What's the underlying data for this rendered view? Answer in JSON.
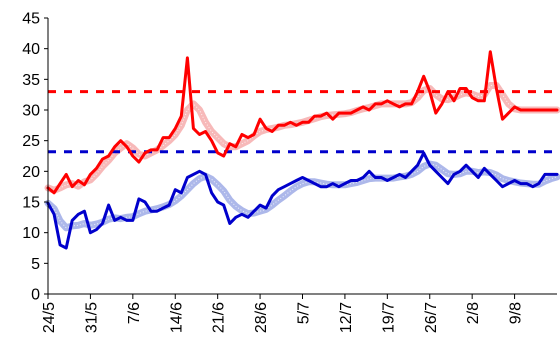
{
  "chart_data": {
    "type": "line",
    "title": "",
    "xlabel": "",
    "ylabel": "",
    "ylim": [
      0,
      45
    ],
    "y_ticks": [
      0,
      5,
      10,
      15,
      20,
      25,
      30,
      35,
      40,
      45
    ],
    "x_range_days": [
      "24/5",
      "16/8"
    ],
    "x_ticks": [
      "24/5",
      "31/5",
      "7/6",
      "14/6",
      "21/6",
      "28/6",
      "5/7",
      "12/7",
      "19/7",
      "26/7",
      "2/8",
      "9/8"
    ],
    "grid": false,
    "legend": "none",
    "reference_lines": [
      {
        "value": 33,
        "color": "#ff0000",
        "style": "dashed"
      },
      {
        "value": 23.2,
        "color": "#0000cc",
        "style": "dashed"
      }
    ],
    "series": [
      {
        "color": "#ff0000",
        "style": "solid",
        "dates": [
          "24/5",
          "25/5",
          "26/5",
          "27/5",
          "28/5",
          "29/5",
          "30/5",
          "31/5",
          "1/6",
          "2/6",
          "3/6",
          "4/6",
          "5/6",
          "6/6",
          "7/6",
          "8/6",
          "9/6",
          "10/6",
          "11/6",
          "12/6",
          "13/6",
          "14/6",
          "15/6",
          "16/6",
          "17/6",
          "18/6",
          "19/6",
          "20/6",
          "21/6",
          "22/6",
          "23/6",
          "24/6",
          "25/6",
          "26/6",
          "27/6",
          "28/6",
          "29/6",
          "30/6",
          "1/7",
          "2/7",
          "3/7",
          "4/7",
          "5/7",
          "6/7",
          "7/7",
          "8/7",
          "9/7",
          "10/7",
          "11/7",
          "12/7",
          "13/7",
          "14/7",
          "15/7",
          "16/7",
          "17/7",
          "18/7",
          "19/7",
          "20/7",
          "21/7",
          "22/7",
          "23/7",
          "24/7",
          "25/7",
          "26/7",
          "27/7",
          "28/7",
          "29/7",
          "30/7",
          "31/7",
          "1/8",
          "2/8",
          "3/8",
          "4/8",
          "5/8",
          "6/8",
          "7/8",
          "8/8",
          "9/8",
          "10/8",
          "11/8",
          "12/8",
          "13/8",
          "14/8",
          "15/8",
          "16/8"
        ],
        "values": [
          17.3,
          16.5,
          18,
          19.5,
          17.5,
          18.5,
          17.8,
          19.5,
          20.5,
          22,
          22.5,
          24,
          25,
          24,
          22.5,
          21.5,
          23,
          23.5,
          23.5,
          25.5,
          25.5,
          27,
          29,
          38.5,
          27,
          26,
          26.5,
          25,
          23,
          22.5,
          24.5,
          24,
          26,
          25.5,
          26,
          28.5,
          27,
          26.5,
          27.5,
          27.5,
          28,
          27.5,
          28,
          28,
          29,
          29,
          29.5,
          28.5,
          29.5,
          29.5,
          29.5,
          30,
          30.5,
          30,
          31,
          31,
          31.5,
          31,
          30.5,
          31,
          31,
          33,
          35.5,
          33,
          29.5,
          31,
          33,
          31.5,
          33.5,
          33.5,
          32,
          31.5,
          31.5,
          39.5,
          33.5,
          28.5,
          29.5,
          30.5,
          30,
          30,
          30,
          30,
          30,
          30,
          30
        ]
      },
      {
        "color": "#0000cc",
        "style": "solid",
        "dates": [
          "24/5",
          "25/5",
          "26/5",
          "27/5",
          "28/5",
          "29/5",
          "30/5",
          "31/5",
          "1/6",
          "2/6",
          "3/6",
          "4/6",
          "5/6",
          "6/6",
          "7/6",
          "8/6",
          "9/6",
          "10/6",
          "11/6",
          "12/6",
          "13/6",
          "14/6",
          "15/6",
          "16/6",
          "17/6",
          "18/6",
          "19/6",
          "20/6",
          "21/6",
          "22/6",
          "23/6",
          "24/6",
          "25/6",
          "26/6",
          "27/6",
          "28/6",
          "29/6",
          "30/6",
          "1/7",
          "2/7",
          "3/7",
          "4/7",
          "5/7",
          "6/7",
          "7/7",
          "8/7",
          "9/7",
          "10/7",
          "11/7",
          "12/7",
          "13/7",
          "14/7",
          "15/7",
          "16/7",
          "17/7",
          "18/7",
          "19/7",
          "20/7",
          "21/7",
          "22/7",
          "23/7",
          "24/7",
          "25/7",
          "26/7",
          "27/7",
          "28/7",
          "29/7",
          "30/7",
          "31/7",
          "1/8",
          "2/8",
          "3/8",
          "4/8",
          "5/8",
          "6/8",
          "7/8",
          "8/8",
          "9/8",
          "10/8",
          "11/8",
          "12/8",
          "13/8",
          "14/8",
          "15/8",
          "16/8"
        ],
        "values": [
          14.8,
          13,
          8,
          7.5,
          12,
          13,
          13.5,
          10,
          10.5,
          11.5,
          14.5,
          12,
          12.5,
          12,
          12,
          15.5,
          15,
          13.5,
          13.5,
          14,
          14.5,
          17,
          16.5,
          19,
          19.5,
          20,
          19.5,
          16.5,
          15,
          14.5,
          11.5,
          12.5,
          13,
          12.5,
          13.5,
          14.5,
          14,
          16,
          17,
          17.5,
          18,
          18.5,
          19,
          18.5,
          18,
          17.5,
          17.5,
          18,
          17.5,
          18,
          18.5,
          18.5,
          19,
          20,
          19,
          19,
          18.5,
          19,
          19.5,
          19,
          20,
          21,
          23,
          21,
          20,
          19,
          18,
          19.5,
          20,
          21,
          20,
          19,
          20.5,
          19.5,
          18.5,
          17.5,
          18,
          18.5,
          18,
          18,
          17.5,
          18,
          19.5,
          19.5,
          19.5
        ]
      },
      {
        "color": "#f08080",
        "style": "moving-average",
        "dates": [
          "24/5",
          "25/5",
          "26/5",
          "27/5",
          "28/5",
          "29/5",
          "30/5",
          "31/5",
          "1/6",
          "2/6",
          "3/6",
          "4/6",
          "5/6",
          "6/6",
          "7/6",
          "8/6",
          "9/6",
          "10/6",
          "11/6",
          "12/6",
          "13/6",
          "14/6",
          "15/6",
          "16/6",
          "17/6",
          "18/6",
          "19/6",
          "20/6",
          "21/6",
          "22/6",
          "23/6",
          "24/6",
          "25/6",
          "26/6",
          "27/6",
          "28/6",
          "29/6",
          "30/6",
          "1/7",
          "2/7",
          "3/7",
          "4/7",
          "5/7",
          "6/7",
          "7/7",
          "8/7",
          "9/7",
          "10/7",
          "11/7",
          "12/7",
          "13/7",
          "14/7",
          "15/7",
          "16/7",
          "17/7",
          "18/7",
          "19/7",
          "20/7",
          "21/7",
          "22/7",
          "23/7",
          "24/7",
          "25/7",
          "26/7",
          "27/7",
          "28/7",
          "29/7",
          "30/7",
          "31/7",
          "1/8",
          "2/8",
          "3/8",
          "4/8",
          "5/8",
          "6/8",
          "7/8",
          "8/8",
          "9/8",
          "10/8",
          "11/8",
          "12/8",
          "13/8",
          "14/8",
          "15/8",
          "16/8"
        ],
        "values": [
          17.3,
          16.9,
          17.3,
          17.8,
          18,
          17.6,
          18.3,
          18.6,
          19.6,
          20.8,
          21.8,
          23,
          23.8,
          24.5,
          23.8,
          22.8,
          22.5,
          23,
          23.5,
          24.2,
          25,
          26,
          27.5,
          30,
          31,
          30,
          28,
          26.5,
          25.5,
          24.5,
          24,
          24,
          24.5,
          25,
          25.8,
          26.5,
          26.8,
          27,
          27.2,
          27.5,
          27.6,
          27.8,
          28,
          28.3,
          28.6,
          28.9,
          29.1,
          29.2,
          29.3,
          29.4,
          29.6,
          29.9,
          30.2,
          30.4,
          30.7,
          31,
          31,
          31,
          31,
          31,
          31.2,
          32,
          33.2,
          33.5,
          32.5,
          31.8,
          31.7,
          32,
          32.5,
          32.8,
          32.6,
          32.2,
          32.5,
          34,
          34,
          32.5,
          31,
          30.2,
          30,
          30,
          30,
          30,
          30,
          30,
          30
        ]
      },
      {
        "color": "#6a7dd8",
        "style": "moving-average",
        "dates": [
          "24/5",
          "25/5",
          "26/5",
          "27/5",
          "28/5",
          "29/5",
          "30/5",
          "31/5",
          "1/6",
          "2/6",
          "3/6",
          "4/6",
          "5/6",
          "6/6",
          "7/6",
          "8/6",
          "9/6",
          "10/6",
          "11/6",
          "12/6",
          "13/6",
          "14/6",
          "15/6",
          "16/6",
          "17/6",
          "18/6",
          "19/6",
          "20/6",
          "21/6",
          "22/6",
          "23/6",
          "24/6",
          "25/6",
          "26/6",
          "27/6",
          "28/6",
          "29/6",
          "30/6",
          "1/7",
          "2/7",
          "3/7",
          "4/7",
          "5/7",
          "6/7",
          "7/7",
          "8/7",
          "9/7",
          "10/7",
          "11/7",
          "12/7",
          "13/7",
          "14/7",
          "15/7",
          "16/7",
          "17/7",
          "18/7",
          "19/7",
          "20/7",
          "21/7",
          "22/7",
          "23/7",
          "24/7",
          "25/7",
          "26/7",
          "27/7",
          "28/7",
          "29/7",
          "30/7",
          "31/7",
          "1/8",
          "2/8",
          "3/8",
          "4/8",
          "5/8",
          "6/8",
          "7/8",
          "8/8",
          "9/8",
          "10/8",
          "11/8",
          "12/8",
          "13/8",
          "14/8",
          "15/8",
          "16/8"
        ],
        "values": [
          14.8,
          13.9,
          11.9,
          10.8,
          11.1,
          11.2,
          11.5,
          11.2,
          11.4,
          11.7,
          12.2,
          12.4,
          12.3,
          12.5,
          12.6,
          13.1,
          13.5,
          13.7,
          13.9,
          14.2,
          14.6,
          15.2,
          16,
          17,
          18,
          18.8,
          19.2,
          18.7,
          17.8,
          16.8,
          15.3,
          14.3,
          13.6,
          13.1,
          13.2,
          13.5,
          13.8,
          14.5,
          15.3,
          16,
          16.8,
          17.5,
          18,
          18.3,
          18.3,
          18.1,
          17.9,
          17.8,
          17.8,
          17.8,
          18,
          18.2,
          18.5,
          18.8,
          18.9,
          18.9,
          18.9,
          18.9,
          19.1,
          19.2,
          19.5,
          20,
          20.8,
          21.2,
          21,
          20.3,
          19.6,
          19.5,
          19.6,
          20,
          20,
          19.8,
          19.9,
          19.8,
          19.4,
          18.8,
          18.5,
          18.3,
          18.1,
          18,
          17.9,
          17.9,
          18.4,
          18.8,
          19.1
        ]
      }
    ]
  }
}
